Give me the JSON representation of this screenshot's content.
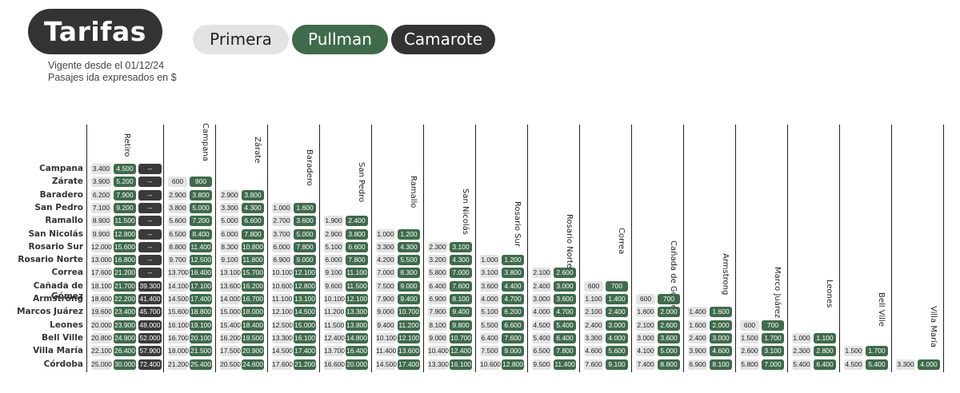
{
  "header": {
    "title": "Tarifas",
    "subtitle_1": "Vigente desde el 01/12/24",
    "subtitle_2": "Pasajes ida expresados en $"
  },
  "classes": [
    "Primera",
    "Pullman",
    "Camarote"
  ],
  "colors": {
    "primera": "#e3e3e3",
    "pullman": "#3f6b4b",
    "camarote": "#333333"
  },
  "columns": [
    "Retiro",
    "Campana",
    "Zárate",
    "Baradero",
    "San Pedro",
    "Ramallo",
    "San Nicolás",
    "Rosario Sur",
    "Rosario Norte",
    "Correa",
    "Cañada de Gómez",
    "Armstrong",
    "Marco Juárez",
    "Leones",
    "Bell Ville",
    "Villa María"
  ],
  "rows": [
    {
      "name": "Campana",
      "fares": [
        [
          "3.400",
          "4.500",
          "--"
        ]
      ]
    },
    {
      "name": "Zárate",
      "fares": [
        [
          "3.900",
          "5.200",
          "--"
        ],
        [
          "600",
          "900"
        ]
      ]
    },
    {
      "name": "Baradero",
      "fares": [
        [
          "6.200",
          "7.900",
          "--"
        ],
        [
          "2.900",
          "3.800"
        ],
        [
          "2.900",
          "3.800"
        ]
      ]
    },
    {
      "name": "San Pedro",
      "fares": [
        [
          "7.100",
          "9.200",
          "--"
        ],
        [
          "3.800",
          "5.000"
        ],
        [
          "3.300",
          "4.300"
        ],
        [
          "1.000",
          "1.600"
        ]
      ]
    },
    {
      "name": "Ramallo",
      "fares": [
        [
          "8.900",
          "11.500",
          "--"
        ],
        [
          "5.600",
          "7.200"
        ],
        [
          "5.000",
          "6.600"
        ],
        [
          "2.700",
          "3.600"
        ],
        [
          "1.900",
          "2.400"
        ]
      ]
    },
    {
      "name": "San Nicolás",
      "fares": [
        [
          "9.900",
          "12.800",
          "--"
        ],
        [
          "6.500",
          "8.400"
        ],
        [
          "6.000",
          "7.800"
        ],
        [
          "3.700",
          "5.000"
        ],
        [
          "2.900",
          "3.800"
        ],
        [
          "1.000",
          "1.200"
        ]
      ]
    },
    {
      "name": "Rosario Sur",
      "fares": [
        [
          "12.000",
          "15.600",
          "--"
        ],
        [
          "8.800",
          "11.400"
        ],
        [
          "8.300",
          "10.800"
        ],
        [
          "6.000",
          "7.800"
        ],
        [
          "5.100",
          "6.600"
        ],
        [
          "3.300",
          "4.300"
        ],
        [
          "2.300",
          "3.100"
        ]
      ]
    },
    {
      "name": "Rosario Norte",
      "fares": [
        [
          "13.000",
          "16.800",
          "--"
        ],
        [
          "9.700",
          "12.500"
        ],
        [
          "9.100",
          "11.800"
        ],
        [
          "6.900",
          "9.000"
        ],
        [
          "6.000",
          "7.800"
        ],
        [
          "4.200",
          "5.500"
        ],
        [
          "3.200",
          "4.300"
        ],
        [
          "1.000",
          "1.200"
        ]
      ]
    },
    {
      "name": "Correa",
      "fares": [
        [
          "17.600",
          "21.200",
          "--"
        ],
        [
          "13.700",
          "16.400"
        ],
        [
          "13.100",
          "15.700"
        ],
        [
          "10.100",
          "12.100"
        ],
        [
          "9.100",
          "11.100"
        ],
        [
          "7.000",
          "8.300"
        ],
        [
          "5.800",
          "7.000"
        ],
        [
          "3.100",
          "3.800"
        ],
        [
          "2.100",
          "2.600"
        ]
      ]
    },
    {
      "name": "Cañada de Gómez",
      "fares": [
        [
          "18.100",
          "21.700",
          "39.300"
        ],
        [
          "14.100",
          "17.100"
        ],
        [
          "13.600",
          "16.200"
        ],
        [
          "10.600",
          "12.800"
        ],
        [
          "9.600",
          "11.500"
        ],
        [
          "7.500",
          "9.000"
        ],
        [
          "6.400",
          "7.600"
        ],
        [
          "3.600",
          "4.400"
        ],
        [
          "2.400",
          "3.000"
        ],
        [
          "600",
          "700"
        ]
      ]
    },
    {
      "name": "Armstrong",
      "fares": [
        [
          "18.600",
          "22.200",
          "41.400"
        ],
        [
          "14.500",
          "17.400"
        ],
        [
          "14.000",
          "16.700"
        ],
        [
          "11.100",
          "13.100"
        ],
        [
          "10.100",
          "12.100"
        ],
        [
          "7.900",
          "9.400"
        ],
        [
          "6.900",
          "8.100"
        ],
        [
          "4.000",
          "4.700"
        ],
        [
          "3.000",
          "3.600"
        ],
        [
          "1.100",
          "1.400"
        ],
        [
          "600",
          "700"
        ]
      ]
    },
    {
      "name": "Marcos Juárez",
      "fares": [
        [
          "19.600",
          "23.400",
          "45.700"
        ],
        [
          "15.600",
          "18.800"
        ],
        [
          "15.000",
          "18.000"
        ],
        [
          "12.100",
          "14.500"
        ],
        [
          "11.200",
          "13.300"
        ],
        [
          "9.000",
          "10.700"
        ],
        [
          "7.900",
          "9.400"
        ],
        [
          "5.100",
          "6.200"
        ],
        [
          "4.000",
          "4.700"
        ],
        [
          "2.100",
          "2.400"
        ],
        [
          "1.600",
          "2.000"
        ],
        [
          "1.400",
          "1.600"
        ]
      ]
    },
    {
      "name": "Leones",
      "fares": [
        [
          "20.000",
          "23.900",
          "48.000"
        ],
        [
          "16.100",
          "19.100"
        ],
        [
          "15.400",
          "18.400"
        ],
        [
          "12.500",
          "15.000"
        ],
        [
          "11.500",
          "13.800"
        ],
        [
          "9.400",
          "11.200"
        ],
        [
          "8.100",
          "9.800"
        ],
        [
          "5.500",
          "6.600"
        ],
        [
          "4.500",
          "5.400"
        ],
        [
          "2.400",
          "3.000"
        ],
        [
          "2.100",
          "2.600"
        ],
        [
          "1.600",
          "2.000"
        ],
        [
          "600",
          "700"
        ]
      ]
    },
    {
      "name": "Bell Ville",
      "fares": [
        [
          "20.800",
          "24.900",
          "52.000"
        ],
        [
          "16.700",
          "20.100"
        ],
        [
          "16.200",
          "19.500"
        ],
        [
          "13.300",
          "16.100"
        ],
        [
          "12.400",
          "14.800"
        ],
        [
          "10.100",
          "12.100"
        ],
        [
          "9.000",
          "10.700"
        ],
        [
          "6.400",
          "7.600"
        ],
        [
          "5.400",
          "6.400"
        ],
        [
          "3.300",
          "4.000"
        ],
        [
          "3.000",
          "3.600"
        ],
        [
          "2.400",
          "3.000"
        ],
        [
          "1.500",
          "1.700"
        ],
        [
          "1.000",
          "1.100"
        ]
      ]
    },
    {
      "name": "Villa María",
      "fares": [
        [
          "22.100",
          "26.400",
          "57.900"
        ],
        [
          "18.000",
          "21.500"
        ],
        [
          "17.500",
          "20.900"
        ],
        [
          "14.500",
          "17.400"
        ],
        [
          "13.700",
          "16.400"
        ],
        [
          "11.400",
          "13.600"
        ],
        [
          "10.400",
          "12.400"
        ],
        [
          "7.500",
          "9.000"
        ],
        [
          "6.500",
          "7.800"
        ],
        [
          "4.600",
          "5.600"
        ],
        [
          "4.100",
          "5.000"
        ],
        [
          "3.900",
          "4.600"
        ],
        [
          "2.600",
          "3.100"
        ],
        [
          "2.300",
          "2.800"
        ],
        [
          "1.500",
          "1.700"
        ]
      ]
    },
    {
      "name": "Córdoba",
      "fares": [
        [
          "25.000",
          "30.000",
          "72.400"
        ],
        [
          "21.200",
          "25.400"
        ],
        [
          "20.500",
          "24.600"
        ],
        [
          "17.600",
          "21.200"
        ],
        [
          "16.600",
          "20.000"
        ],
        [
          "14.500",
          "17.400"
        ],
        [
          "13.300",
          "16.100"
        ],
        [
          "10.600",
          "12.800"
        ],
        [
          "9.500",
          "11.400"
        ],
        [
          "7.600",
          "9.100"
        ],
        [
          "7.400",
          "8.800"
        ],
        [
          "6.900",
          "8.100"
        ],
        [
          "5.800",
          "7.000"
        ],
        [
          "5.400",
          "6.400"
        ],
        [
          "4.500",
          "5.400"
        ],
        [
          "3.300",
          "4.000"
        ]
      ]
    }
  ]
}
